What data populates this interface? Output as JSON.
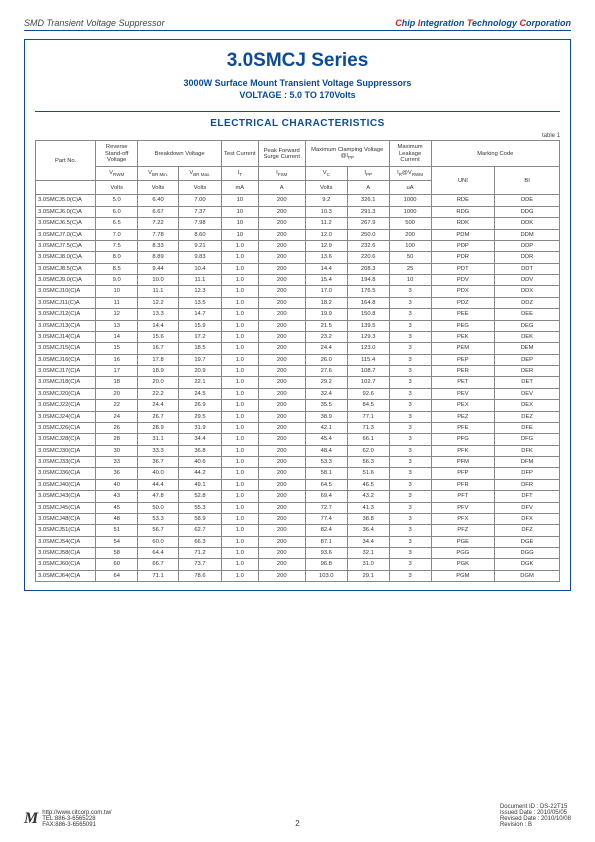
{
  "header": {
    "left": "SMD Transient Voltage Suppressor",
    "right_html": "Chip Integration Technology Corporation"
  },
  "title": "3.0SMCJ Series",
  "subtitle": [
    "3000W Surface Mount Transient Voltage Suppressors",
    "VOLTAGE : 5.0 TO 170Volts"
  ],
  "section": "ELECTRICAL CHARACTERISTICS",
  "caption": "table 1",
  "cols_top": [
    "Part No.",
    "Reverse Stand-off Voltage",
    "Breakdown Voltage",
    "Test Current",
    "Peak Forward Surge Current",
    "Maximum Clamping Voltage @I",
    "Maximum Leakage Current",
    "Marking Code"
  ],
  "cols_mid": [
    "V",
    "V",
    "V",
    "I",
    "I",
    "V",
    "I",
    "I@V"
  ],
  "cols_sub": [
    "RWM",
    "BR Min.",
    "BR Max.",
    "T",
    "FSM",
    "C",
    "PP",
    "R       RWM"
  ],
  "units": [
    "Volts",
    "Volts",
    "Volts",
    "mA",
    "A",
    "Volts",
    "A",
    "uA",
    "UNI",
    "BI"
  ],
  "rows": [
    [
      "3.0SMCJ5.0(C)A",
      "5.0",
      "6.40",
      "7.00",
      "10",
      "200",
      "9.2",
      "326.1",
      "1000",
      "RDE",
      "DDE"
    ],
    [
      "3.0SMCJ6.0(C)A",
      "6.0",
      "6.67",
      "7.37",
      "10",
      "200",
      "10.3",
      "291.3",
      "1000",
      "RDG",
      "DDG"
    ],
    [
      "3.0SMCJ6.5(C)A",
      "6.5",
      "7.22",
      "7.98",
      "10",
      "200",
      "11.2",
      "267.9",
      "500",
      "RDK",
      "DDK"
    ],
    [
      "3.0SMCJ7.0(C)A",
      "7.0",
      "7.78",
      "8.60",
      "10",
      "200",
      "12.0",
      "250.0",
      "200",
      "PDM",
      "DDM"
    ],
    [
      "3.0SMCJ7.5(C)A",
      "7.5",
      "8.33",
      "9.21",
      "1.0",
      "200",
      "12.9",
      "232.6",
      "100",
      "PDP",
      "DDP"
    ],
    [
      "3.0SMCJ8.0(C)A",
      "8.0",
      "8.89",
      "9.83",
      "1.0",
      "200",
      "13.6",
      "220.6",
      "50",
      "PDR",
      "DDR"
    ],
    [
      "3.0SMCJ8.5(C)A",
      "8.5",
      "9.44",
      "10.4",
      "1.0",
      "200",
      "14.4",
      "208.3",
      "25",
      "PDT",
      "DDT"
    ],
    [
      "3.0SMCJ9.0(C)A",
      "9.0",
      "10.0",
      "11.1",
      "1.0",
      "200",
      "15.4",
      "194.8",
      "10",
      "PDV",
      "DDV"
    ],
    [
      "3.0SMCJ10(C)A",
      "10",
      "11.1",
      "12.3",
      "1.0",
      "200",
      "17.0",
      "176.5",
      "3",
      "PDX",
      "DDX"
    ],
    [
      "3.0SMCJ11(C)A",
      "11",
      "12.2",
      "13.5",
      "1.0",
      "200",
      "18.2",
      "164.8",
      "3",
      "PDZ",
      "DDZ"
    ],
    [
      "3.0SMCJ12(C)A",
      "12",
      "13.3",
      "14.7",
      "1.0",
      "200",
      "19.9",
      "150.8",
      "3",
      "PEE",
      "DEE"
    ],
    [
      "3.0SMCJ13(C)A",
      "13",
      "14.4",
      "15.9",
      "1.0",
      "200",
      "21.5",
      "139.5",
      "3",
      "PEG",
      "DEG"
    ],
    [
      "3.0SMCJ14(C)A",
      "14",
      "15.6",
      "17.2",
      "1.0",
      "200",
      "23.2",
      "129.3",
      "3",
      "PEK",
      "DEK"
    ],
    [
      "3.0SMCJ15(C)A",
      "15",
      "16.7",
      "18.5",
      "1.0",
      "200",
      "24.4",
      "123.0",
      "3",
      "PEM",
      "DEM"
    ],
    [
      "3.0SMCJ16(C)A",
      "16",
      "17.8",
      "19.7",
      "1.0",
      "200",
      "26.0",
      "115.4",
      "3",
      "PEP",
      "DEP"
    ],
    [
      "3.0SMCJ17(C)A",
      "17",
      "18.9",
      "20.9",
      "1.0",
      "200",
      "27.6",
      "108.7",
      "3",
      "PER",
      "DER"
    ],
    [
      "3.0SMCJ18(C)A",
      "18",
      "20.0",
      "22.1",
      "1.0",
      "200",
      "29.2",
      "102.7",
      "3",
      "PET",
      "DET"
    ],
    [
      "3.0SMCJ20(C)A",
      "20",
      "22.2",
      "24.5",
      "1.0",
      "200",
      "32.4",
      "92.6",
      "3",
      "PEV",
      "DEV"
    ],
    [
      "3.0SMCJ22(C)A",
      "22",
      "24.4",
      "26.9",
      "1.0",
      "200",
      "35.5",
      "84.5",
      "3",
      "PEX",
      "DEX"
    ],
    [
      "3.0SMCJ24(C)A",
      "24",
      "26.7",
      "29.5",
      "1.0",
      "200",
      "38.9",
      "77.1",
      "3",
      "PEZ",
      "DEZ"
    ],
    [
      "3.0SMCJ26(C)A",
      "26",
      "28.9",
      "31.9",
      "1.0",
      "200",
      "42.1",
      "71.3",
      "3",
      "PFE",
      "DFE"
    ],
    [
      "3.0SMCJ28(C)A",
      "28",
      "31.1",
      "34.4",
      "1.0",
      "200",
      "45.4",
      "66.1",
      "3",
      "PFG",
      "DFG"
    ],
    [
      "3.0SMCJ30(C)A",
      "30",
      "33.3",
      "36.8",
      "1.0",
      "200",
      "48.4",
      "62.0",
      "3",
      "PFK",
      "DFK"
    ],
    [
      "3.0SMCJ33(C)A",
      "33",
      "36.7",
      "40.6",
      "1.0",
      "200",
      "53.3",
      "56.3",
      "3",
      "PFM",
      "DFM"
    ],
    [
      "3.0SMCJ36(C)A",
      "36",
      "40.0",
      "44.2",
      "1.0",
      "200",
      "58.1",
      "51.6",
      "3",
      "PFP",
      "DFP"
    ],
    [
      "3.0SMCJ40(C)A",
      "40",
      "44.4",
      "49.1",
      "1.0",
      "200",
      "64.5",
      "46.5",
      "3",
      "PFR",
      "DFR"
    ],
    [
      "3.0SMCJ43(C)A",
      "43",
      "47.8",
      "52.8",
      "1.0",
      "200",
      "69.4",
      "43.2",
      "3",
      "PFT",
      "DFT"
    ],
    [
      "3.0SMCJ45(C)A",
      "45",
      "50.0",
      "55.3",
      "1.0",
      "200",
      "72.7",
      "41.3",
      "3",
      "PFV",
      "DFV"
    ],
    [
      "3.0SMCJ48(C)A",
      "48",
      "53.3",
      "58.9",
      "1.0",
      "200",
      "77.4",
      "38.8",
      "3",
      "PFX",
      "DFX"
    ],
    [
      "3.0SMCJ51(C)A",
      "51",
      "56.7",
      "62.7",
      "1.0",
      "200",
      "82.4",
      "36.4",
      "3",
      "PFZ",
      "DFZ"
    ],
    [
      "3.0SMCJ54(C)A",
      "54",
      "60.0",
      "66.3",
      "1.0",
      "200",
      "87.1",
      "34.4",
      "3",
      "PGE",
      "DGE"
    ],
    [
      "3.0SMCJ58(C)A",
      "58",
      "64.4",
      "71.2",
      "1.0",
      "200",
      "93.6",
      "32.1",
      "3",
      "PGG",
      "DGG"
    ],
    [
      "3.0SMCJ60(C)A",
      "60",
      "66.7",
      "73.7",
      "1.0",
      "200",
      "96.8",
      "31.0",
      "3",
      "PGK",
      "DGK"
    ],
    [
      "3.0SMCJ64(C)A",
      "64",
      "71.1",
      "78.6",
      "1.0",
      "200",
      "103.0",
      "29.1",
      "3",
      "PGM",
      "DGM"
    ]
  ],
  "footer": {
    "url": "http://www.citcorp.com.tw/",
    "tel": "TEL:886-3-6565228",
    "fax": "FAX:886-3-6565091",
    "page": "2",
    "doc": "Document ID : DS-22T15",
    "issued": "Issued Date : 2010/05/05",
    "revised": "Revised Date : 2010/10/08",
    "rev": "Revision : B"
  }
}
